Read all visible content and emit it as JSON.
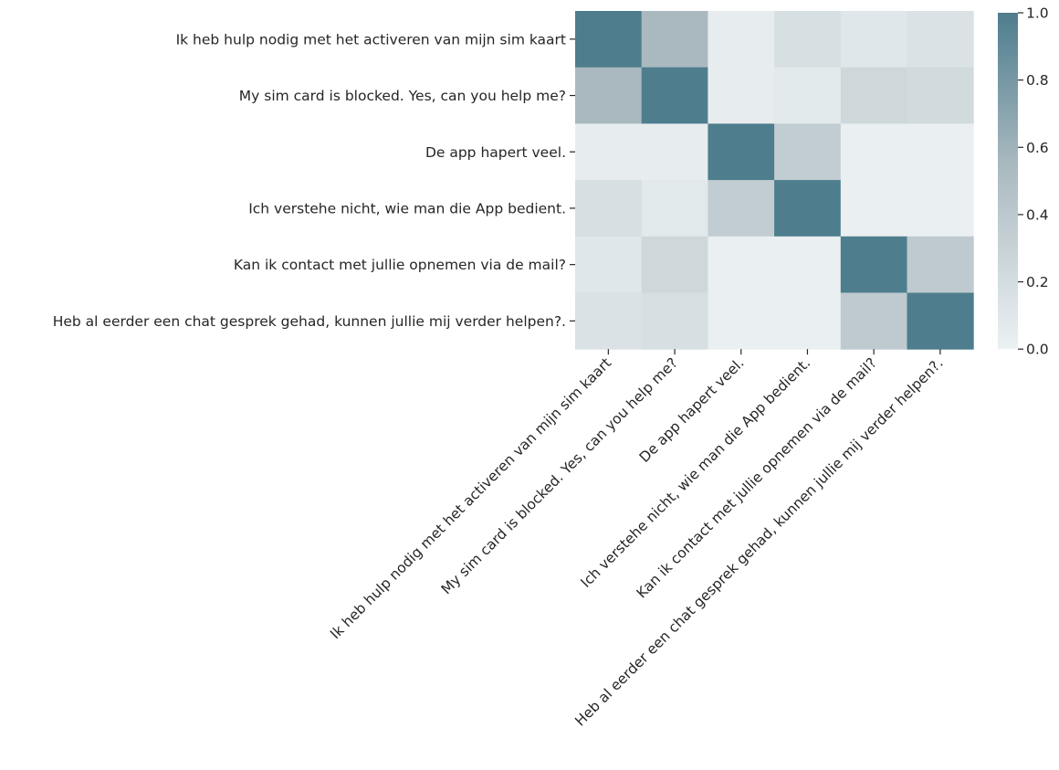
{
  "chart_data": {
    "type": "heatmap",
    "title": "",
    "xlabel": "",
    "ylabel": "",
    "row_labels": [
      "Ik heb hulp nodig met het activeren van mijn sim kaart",
      "My sim card is blocked. Yes, can you help me?",
      "De app hapert veel.",
      "Ich verstehe nicht, wie man die App bedient.",
      "Kan ik contact met jullie opnemen via de mail?",
      "Heb al eerder een chat gesprek gehad, kunnen jullie mij verder helpen?."
    ],
    "col_labels": [
      "Ik heb hulp nodig met het activeren van mijn sim kaart",
      "My sim card is blocked. Yes, can you help me?",
      "De app hapert veel.",
      "Ich verstehe nicht, wie man die App bedient.",
      "Kan ik contact met jullie opnemen via de mail?",
      "Heb al eerder een chat gesprek gehad, kunnen jullie mij verder helpen?."
    ],
    "values": [
      [
        1.0,
        0.55,
        0.04,
        0.18,
        0.1,
        0.15
      ],
      [
        0.55,
        1.0,
        0.04,
        0.08,
        0.25,
        0.22
      ],
      [
        0.04,
        0.04,
        1.0,
        0.35,
        0.02,
        0.02
      ],
      [
        0.18,
        0.08,
        0.35,
        1.0,
        0.02,
        0.02
      ],
      [
        0.1,
        0.25,
        0.02,
        0.02,
        1.0,
        0.38
      ],
      [
        0.15,
        0.18,
        0.02,
        0.02,
        0.38,
        1.0
      ]
    ],
    "colorbar": {
      "min": 0.0,
      "max": 1.0,
      "ticks": [
        "0.0",
        "0.2",
        "0.4",
        "0.6",
        "0.8",
        "1.0"
      ],
      "color_low": "#ecf1f3",
      "color_mid": "#a9b9bf",
      "color_high": "#4e7d8e"
    },
    "grid": false,
    "legend": "colorbar right"
  }
}
